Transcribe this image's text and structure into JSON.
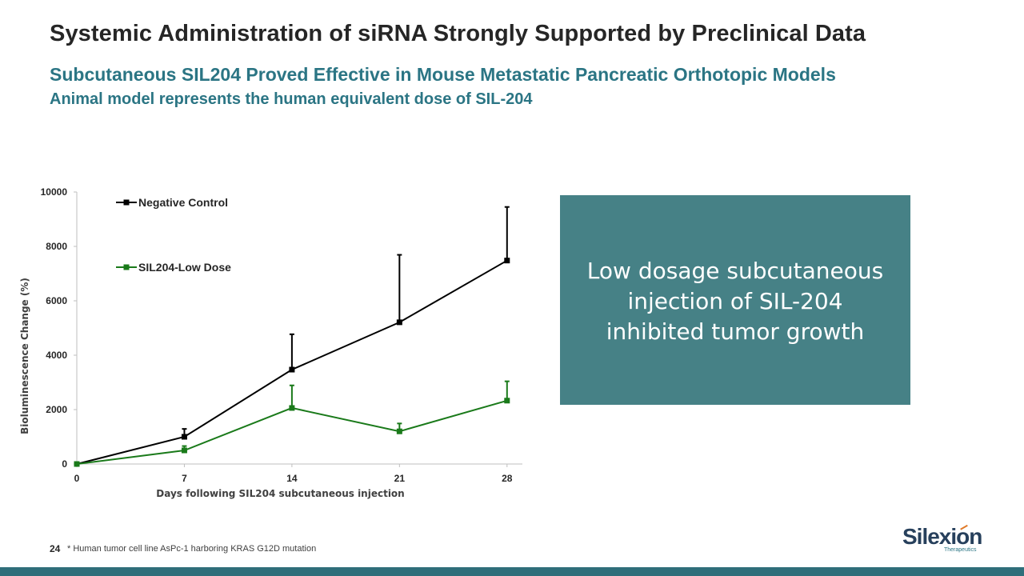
{
  "header": {
    "title": "Systemic Administration of siRNA Strongly Supported by Preclinical Data",
    "subtitle": "Subcutaneous SIL204 Proved Effective in Mouse Metastatic Pancreatic Orthotopic Models",
    "subtitle2": "Animal model represents the human equivalent dose of SIL-204"
  },
  "callout": {
    "text": "Low dosage subcutaneous injection of SIL-204 inhibited tumor growth",
    "background": "#468186"
  },
  "footer": {
    "slide_number": "24",
    "footnote": "* Human tumor cell line AsPc-1 harboring KRAS G12D mutation"
  },
  "logo": {
    "word": "Silexion",
    "tagline": "Therapeutics"
  },
  "chart_data": {
    "type": "line",
    "title": "",
    "xlabel": "Days following SIL204 subcutaneous injection",
    "ylabel": "Bioluminescence Change  (%)",
    "x": [
      0,
      7,
      14,
      21,
      28
    ],
    "xlim": [
      0,
      29
    ],
    "ylim": [
      0,
      10000
    ],
    "x_ticks": [
      0,
      7,
      14,
      21,
      28
    ],
    "y_ticks": [
      0,
      2000,
      4000,
      6000,
      8000,
      10000
    ],
    "legend_position": "top-left",
    "series": [
      {
        "name": "Negative Control",
        "color": "#000000",
        "values": [
          0,
          1000,
          3470,
          5210,
          7480
        ],
        "error_upper": [
          0,
          1290,
          4770,
          7690,
          9450
        ]
      },
      {
        "name": "SIL204-Low Dose",
        "color": "#1a7a1a",
        "values": [
          0,
          500,
          2060,
          1200,
          2330
        ],
        "error_upper": [
          0,
          660,
          2890,
          1490,
          3040
        ]
      }
    ]
  }
}
